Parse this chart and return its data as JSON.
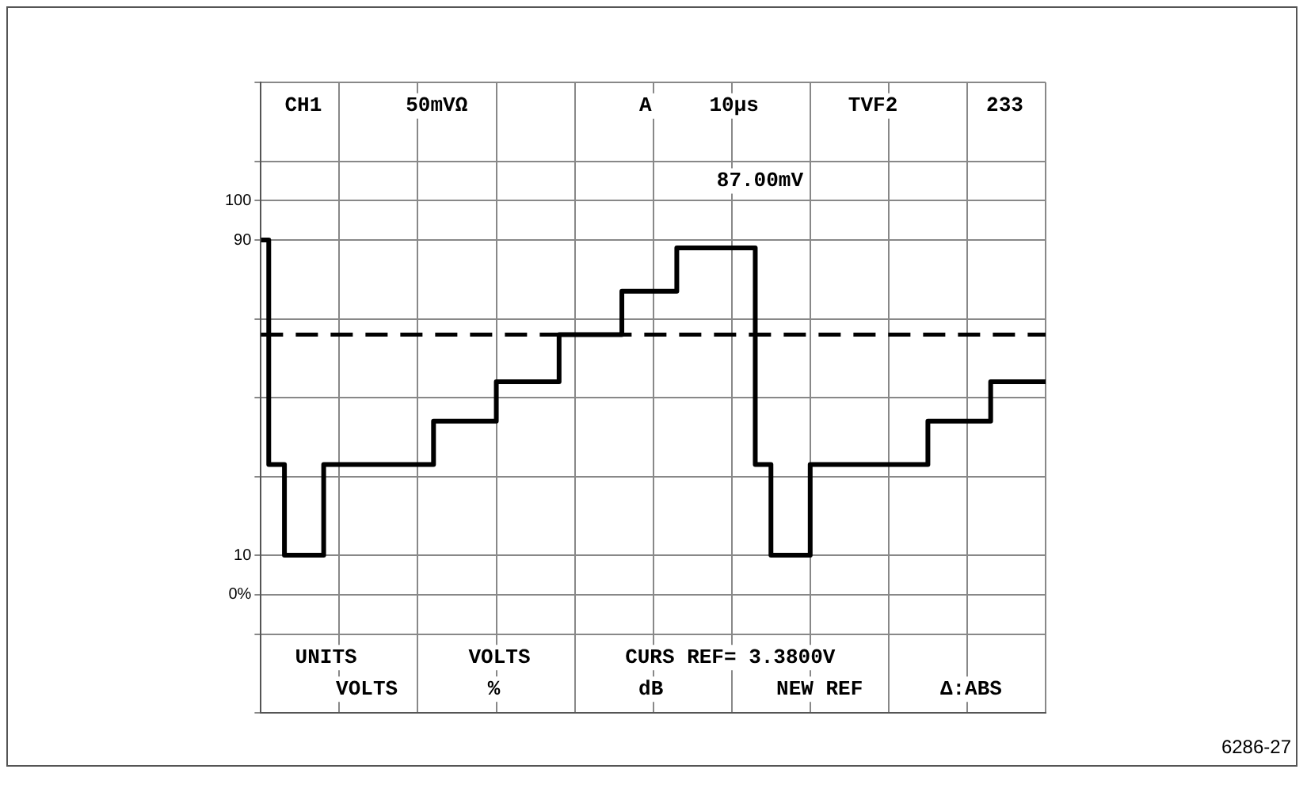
{
  "chart_data": {
    "type": "step",
    "categories": [
      null,
      null,
      null,
      null,
      null,
      null,
      null,
      null,
      null,
      null,
      null,
      null,
      null,
      null,
      null,
      null,
      null,
      null,
      null,
      null,
      null,
      null,
      null,
      null,
      null,
      null,
      null,
      null,
      null,
      null,
      null,
      null,
      null,
      null,
      null,
      null,
      null,
      null,
      null,
      null,
      null,
      null,
      null,
      null,
      null,
      null,
      null,
      null,
      null,
      null,
      null,
      null,
      null,
      null,
      null,
      null,
      null,
      null,
      null,
      null,
      null,
      null,
      null,
      null,
      null,
      null,
      null,
      null,
      null,
      null,
      null,
      null,
      null,
      null,
      null,
      null,
      null,
      null,
      null,
      null,
      null,
      null,
      null,
      null,
      null,
      null,
      null,
      null,
      null,
      null,
      null,
      null,
      null,
      null,
      null,
      null,
      null,
      null,
      null,
      null,
      null
    ],
    "series": [
      {
        "color": "#000000",
        "values": [
          90,
          33,
          33,
          10,
          10,
          10,
          10,
          10,
          33,
          33,
          33,
          33,
          33,
          33,
          33,
          33,
          33,
          33,
          33,
          33,
          33,
          33,
          44,
          44,
          44,
          44,
          44,
          44,
          44,
          44,
          54,
          54,
          54,
          54,
          54,
          54,
          54,
          54,
          66,
          66,
          66,
          66,
          66,
          66,
          66,
          66,
          77,
          77,
          77,
          77,
          77,
          77,
          77,
          88,
          88,
          88,
          88,
          88,
          88,
          88,
          88,
          88,
          88,
          33,
          33,
          10,
          10,
          10,
          10,
          10,
          33,
          33,
          33,
          33,
          33,
          33,
          33,
          33,
          33,
          33,
          33,
          33,
          33,
          33,
          33,
          44,
          44,
          44,
          44,
          44,
          44,
          44,
          44,
          54,
          54,
          54,
          54,
          54,
          54,
          54,
          54
        ]
      }
    ],
    "ylim": [
      -30,
      130
    ],
    "yticks": [
      {
        "value": -30,
        "label": null
      },
      {
        "value": -10,
        "label": null
      },
      {
        "value": 0,
        "label": "0%"
      },
      10,
      {
        "value": 30,
        "label": null
      },
      {
        "value": 50,
        "label": null
      },
      {
        "value": 70,
        "label": null
      },
      90,
      100,
      {
        "value": 110,
        "label": null
      },
      {
        "value": 130,
        "label": null
      }
    ],
    "tick_labels": "y",
    "grid": true,
    "legend": false,
    "marker": "none",
    "line_style": "solid",
    "ref_lines": [
      {
        "axis": "y",
        "value": 66,
        "line_style": "dashed",
        "color": "#000000"
      }
    ],
    "annotations": [
      "CH1",
      "50mVΩ",
      "A",
      "10µs",
      "TVF2",
      "233",
      "87.00mV",
      "UNITS",
      "VOLTS",
      "VOLTS",
      "%",
      "CURS REF= 3.3800V",
      "dB",
      "NEW REF",
      "Δ:ABS",
      "6286-27"
    ]
  }
}
